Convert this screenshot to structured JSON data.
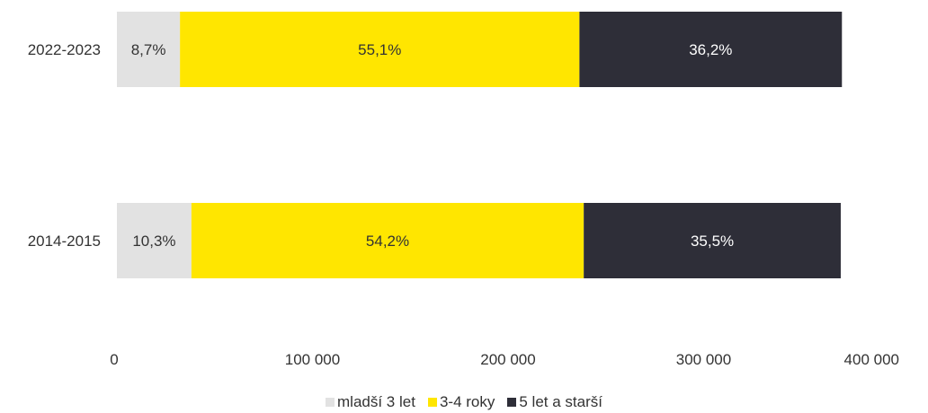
{
  "chart_data": {
    "type": "bar",
    "orientation": "horizontal",
    "stacked": true,
    "categories": [
      "2022-2023",
      "2014-2015"
    ],
    "series": [
      {
        "name": "mladší 3 let",
        "color": "#e2e2e2",
        "values": [
          32250,
          38100
        ],
        "labels": [
          "8,7%",
          "10,3%"
        ]
      },
      {
        "name": "3-4 roky",
        "color": "#ffe600",
        "values": [
          204250,
          200600
        ],
        "labels": [
          "55,1%",
          "54,2%"
        ]
      },
      {
        "name": "5 let a starší",
        "color": "#2e2e38",
        "values": [
          134200,
          131400
        ],
        "labels": [
          "36,2%",
          "35,5%"
        ]
      }
    ],
    "xlim": [
      0,
      400000
    ],
    "x_ticks": [
      "0",
      "100 000",
      "200 000",
      "300 000",
      "400 000"
    ],
    "grid": false,
    "legend_position": "bottom"
  }
}
